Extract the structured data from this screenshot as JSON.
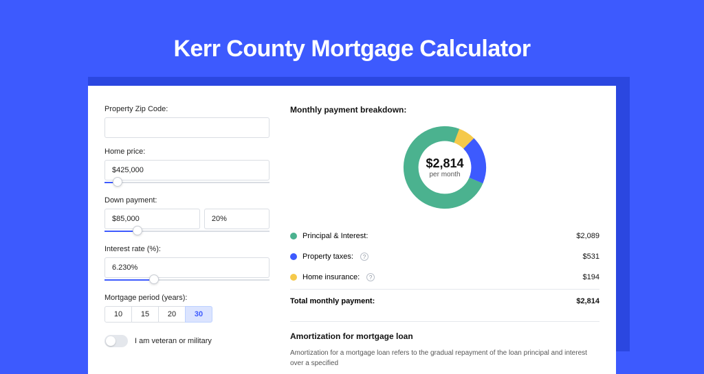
{
  "title": "Kerr County Mortgage Calculator",
  "colors": {
    "page_bg": "#3d5afe",
    "panel_shadow": "#2b47e0",
    "accent": "#3d5afe"
  },
  "form": {
    "zip": {
      "label": "Property Zip Code:",
      "value": ""
    },
    "home_price": {
      "label": "Home price:",
      "value": "$425,000",
      "slider_pct": 8
    },
    "down_payment": {
      "label": "Down payment:",
      "amount": "$85,000",
      "percent": "20%",
      "slider_pct": 20
    },
    "interest_rate": {
      "label": "Interest rate (%):",
      "value": "6.230%",
      "slider_pct": 30
    },
    "period": {
      "label": "Mortgage period (years):",
      "options": [
        "10",
        "15",
        "20",
        "30"
      ],
      "selected": "30"
    },
    "veteran": {
      "label": "I am veteran or military",
      "checked": false
    }
  },
  "breakdown": {
    "title": "Monthly payment breakdown:",
    "donut": {
      "center_amount": "$2,814",
      "center_sub": "per month",
      "slices": [
        {
          "key": "principal_interest",
          "color": "#4bb28f",
          "value": 2089
        },
        {
          "key": "property_taxes",
          "color": "#3d5afe",
          "value": 531
        },
        {
          "key": "home_insurance",
          "color": "#f5c94b",
          "value": 194
        }
      ]
    },
    "legend": {
      "principal_interest": {
        "label": "Principal & Interest:",
        "value": "$2,089",
        "color": "#4bb28f",
        "info": false
      },
      "property_taxes": {
        "label": "Property taxes:",
        "value": "$531",
        "color": "#3d5afe",
        "info": true
      },
      "home_insurance": {
        "label": "Home insurance:",
        "value": "$194",
        "color": "#f5c94b",
        "info": true
      },
      "total": {
        "label": "Total monthly payment:",
        "value": "$2,814"
      }
    }
  },
  "amortization": {
    "title": "Amortization for mortgage loan",
    "text": "Amortization for a mortgage loan refers to the gradual repayment of the loan principal and interest over a specified"
  }
}
